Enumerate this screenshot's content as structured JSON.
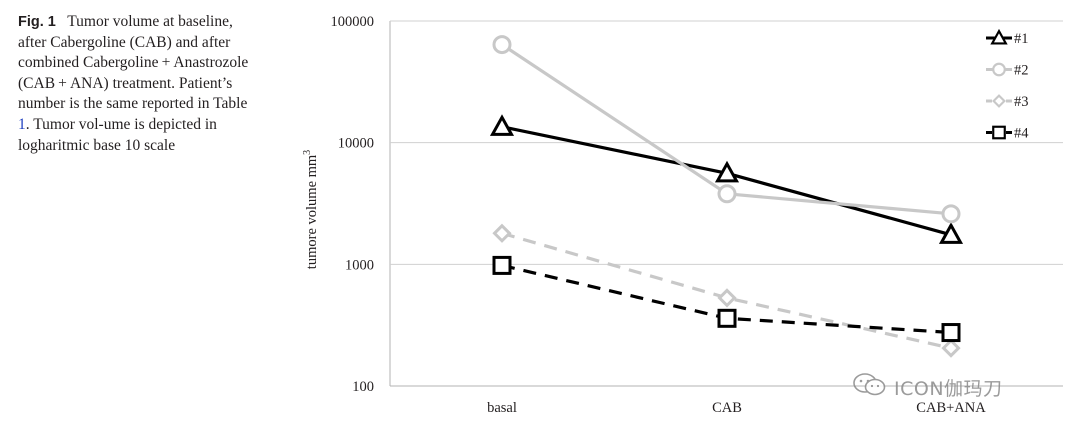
{
  "caption": {
    "label": "Fig. 1",
    "text_part1": "Tumor volume at baseline, after Cabergoline (CAB) and after combined Cabergoline + Anastrozole (CAB + ANA) treatment. Patient’s number is the same reported in Table ",
    "table_ref": "1",
    "text_part2": ". Tumor vol-ume is depicted in logharitmic base 10 scale"
  },
  "watermark": {
    "text": "ICON伽玛刀"
  },
  "chart_data": {
    "type": "line",
    "categories": [
      "basal",
      "CAB",
      "CAB+ANA"
    ],
    "ylabel": "tumore volume mm³",
    "yscale": "log10",
    "ylim": [
      100,
      100000
    ],
    "yticks": [
      "100",
      "1000",
      "10000",
      "100000"
    ],
    "legend_position": "top-right",
    "series": [
      {
        "name": "#1",
        "values": [
          13500,
          5600,
          1750
        ],
        "color": "#000000",
        "dash": "solid",
        "marker": "triangle"
      },
      {
        "name": "#2",
        "values": [
          64000,
          3800,
          2600
        ],
        "color": "#c8c8c8",
        "dash": "solid",
        "marker": "circle"
      },
      {
        "name": "#3",
        "values": [
          1800,
          530,
          205
        ],
        "color": "#c8c8c8",
        "dash": "dashed",
        "marker": "diamond"
      },
      {
        "name": "#4",
        "values": [
          980,
          360,
          275
        ],
        "color": "#000000",
        "dash": "dashed",
        "marker": "square"
      }
    ]
  }
}
